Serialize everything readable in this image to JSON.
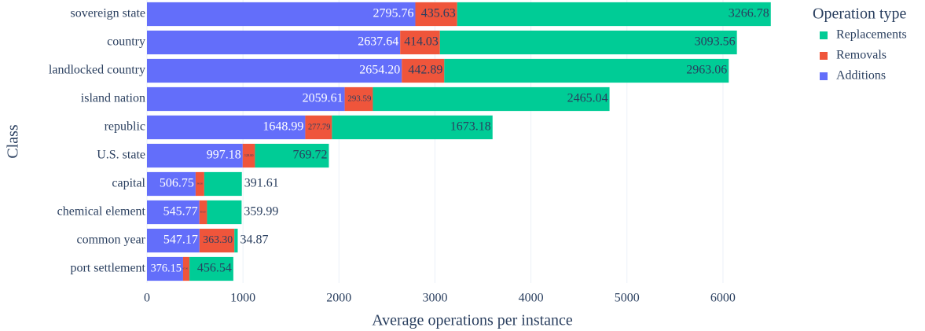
{
  "chart_data": {
    "type": "bar",
    "orientation": "horizontal",
    "barmode": "stack",
    "xlabel": "Average operations per instance",
    "ylabel": "Class",
    "legend_title": "Operation type",
    "categories": [
      "sovereign state",
      "country",
      "landlocked country",
      "island nation",
      "republic",
      "U.S. state",
      "capital",
      "chemical element",
      "common year",
      "port settlement"
    ],
    "series": [
      {
        "name": "Additions",
        "color": "#636efa",
        "label_color": "#ffffff",
        "values": [
          2795.76,
          2637.64,
          2654.2,
          2059.61,
          1648.99,
          997.18,
          506.75,
          545.77,
          547.17,
          376.15
        ],
        "value_labels": [
          "2795.76",
          "2637.64",
          "2654.20",
          "2059.61",
          "1648.99",
          "997.18",
          "506.75",
          "545.77",
          "547.17",
          "376.15"
        ]
      },
      {
        "name": "Removals",
        "color": "#ef553b",
        "label_color": "#2a3f5f",
        "values": [
          435.63,
          414.03,
          442.89,
          293.59,
          277.79,
          128,
          90,
          80,
          363.3,
          67
        ],
        "value_labels": [
          "435.63",
          "414.03",
          "442.89",
          "293.59",
          "277.79",
          "128.00",
          "90.00",
          "80.00",
          "363.30",
          "67.00"
        ]
      },
      {
        "name": "Replacements",
        "color": "#00cc96",
        "label_color": "#2a3f5f",
        "values": [
          3266.78,
          3093.56,
          2963.06,
          2465.04,
          1673.18,
          769.72,
          391.61,
          359.99,
          34.87,
          456.54
        ],
        "value_labels": [
          "3266.78",
          "3093.56",
          "2963.06",
          "2465.04",
          "1673.18",
          "769.72",
          "391.61",
          "359.99",
          "34.87",
          "456.54"
        ]
      }
    ],
    "legend_order": [
      2,
      1,
      0
    ],
    "xlim": [
      0,
      6500
    ],
    "xticks": [
      0,
      1000,
      2000,
      3000,
      4000,
      5000,
      6000
    ],
    "grid": true
  }
}
